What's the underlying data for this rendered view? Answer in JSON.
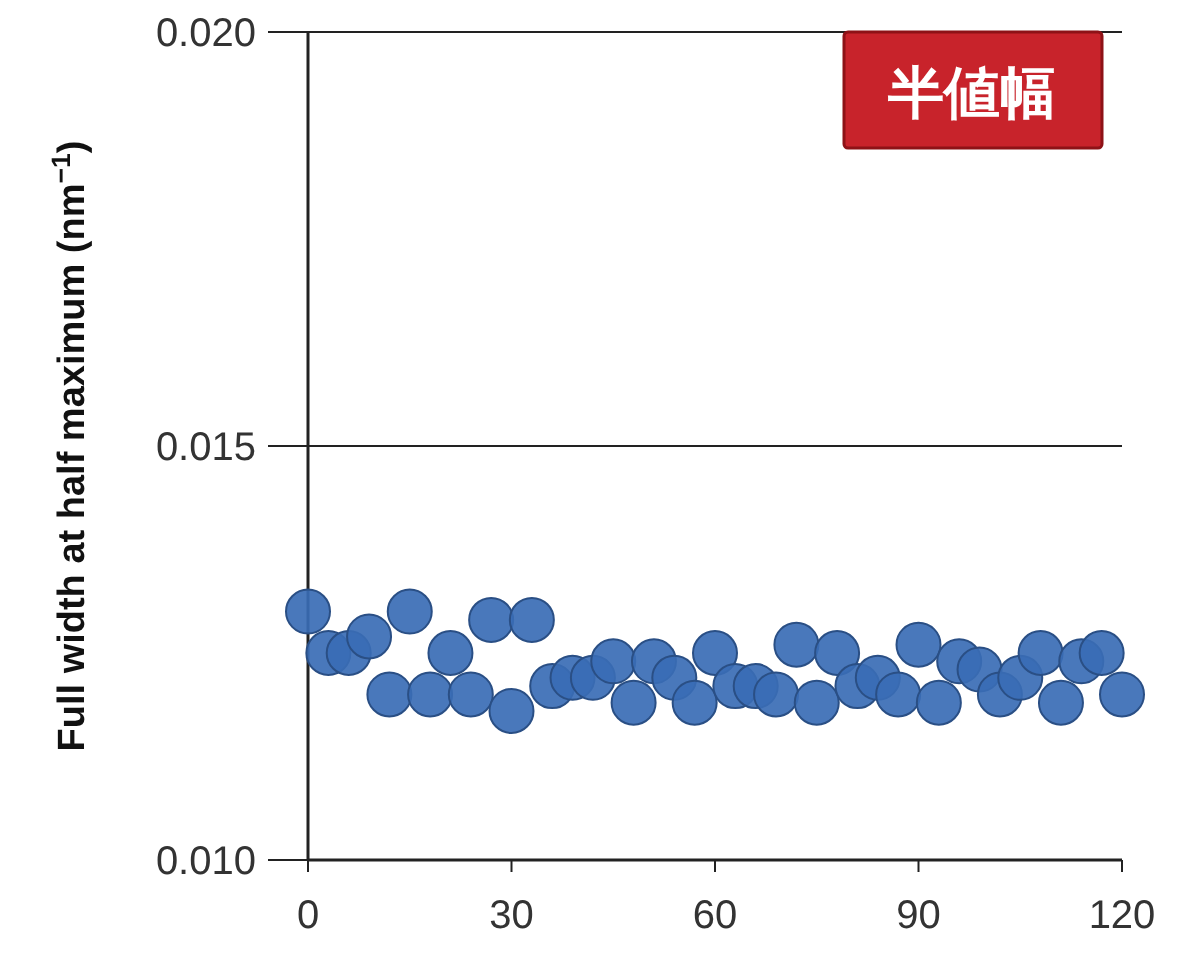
{
  "chart_data": {
    "type": "scatter",
    "title": "半値幅",
    "ylabel": "Full width at half maximum (nm$^{−1}$)",
    "x": [
      0,
      3,
      6,
      9,
      12,
      15,
      18,
      21,
      24,
      27,
      30,
      33,
      36,
      39,
      42,
      45,
      48,
      51,
      54,
      57,
      60,
      63,
      66,
      69,
      72,
      75,
      78,
      81,
      84,
      87,
      90,
      93,
      96,
      99,
      102,
      105,
      108,
      111,
      114,
      117,
      120
    ],
    "values": [
      0.013,
      0.0125,
      0.0125,
      0.0127,
      0.012,
      0.013,
      0.012,
      0.0125,
      0.012,
      0.0129,
      0.0118,
      0.0129,
      0.0121,
      0.0122,
      0.0122,
      0.0124,
      0.0119,
      0.0124,
      0.0122,
      0.0119,
      0.0125,
      0.0121,
      0.0121,
      0.012,
      0.0126,
      0.0119,
      0.0125,
      0.0121,
      0.0122,
      0.012,
      0.0126,
      0.0119,
      0.0124,
      0.0123,
      0.012,
      0.0122,
      0.0125,
      0.0119,
      0.0124,
      0.0125,
      0.012
    ],
    "color": "#3a6db5",
    "marker": "circle",
    "grid": "y",
    "xlim": [
      0,
      120
    ],
    "xticks": [
      0,
      30,
      60,
      90,
      120
    ],
    "ylim": [
      0.01,
      0.02
    ],
    "yticks": [
      {
        "value": 0.01,
        "label": "0.010"
      },
      {
        "value": 0.015,
        "label": "0.015"
      },
      {
        "value": 0.02,
        "label": "0.020"
      }
    ]
  }
}
